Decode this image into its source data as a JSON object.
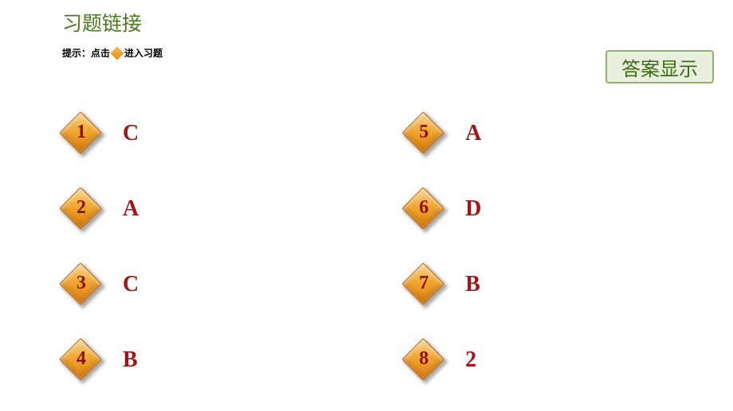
{
  "title": "习题链接",
  "hint_prefix": "提示：点击",
  "hint_suffix": "进入习题",
  "answer_button_label": "答案显示",
  "colors": {
    "title_color": "#4a7a1f",
    "answer_text_color": "#a01515",
    "badge_number_color": "#8a1010",
    "button_bg": "#e8efdc",
    "button_border": "#8fb36b",
    "button_text": "#3d6b15",
    "diamond_gradient_start": "#f8d895",
    "diamond_gradient_mid": "#f0a830",
    "diamond_gradient_end": "#d97b0a",
    "background": "#ffffff"
  },
  "items": [
    {
      "number": "1",
      "answer": "C"
    },
    {
      "number": "2",
      "answer": "A"
    },
    {
      "number": "3",
      "answer": "C"
    },
    {
      "number": "4",
      "answer": "B"
    },
    {
      "number": "5",
      "answer": "A"
    },
    {
      "number": "6",
      "answer": "D"
    },
    {
      "number": "7",
      "answer": "B"
    },
    {
      "number": "8",
      "answer": "2"
    }
  ]
}
